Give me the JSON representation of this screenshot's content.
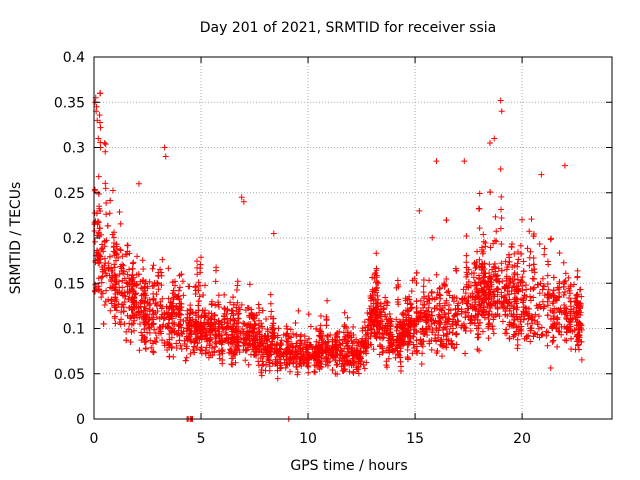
{
  "chart_data": {
    "type": "scatter",
    "title": "Day 201 of 2021, SRMTID for receiver ssia",
    "xlabel": "GPS time / hours",
    "ylabel": "SRMTID / TECUs",
    "xlim": [
      0,
      24.2
    ],
    "ylim": [
      0,
      0.4
    ],
    "xticks": [
      0,
      5,
      10,
      15,
      20
    ],
    "xtick_labels": [
      "0",
      "5",
      "10",
      "15",
      "20"
    ],
    "yticks": [
      0,
      0.05,
      0.1,
      0.15,
      0.2,
      0.25,
      0.3,
      0.35,
      0.4
    ],
    "ytick_labels": [
      "0",
      "0.05",
      "0.1",
      "0.15",
      "0.2",
      "0.25",
      "0.3",
      "0.35",
      "0.4"
    ],
    "grid": true,
    "marker": "plus",
    "color": "#ff0000",
    "series": [
      {
        "name": "SRMTID",
        "profile": {
          "x": [
            0,
            0.5,
            1,
            2,
            3,
            4,
            5,
            6,
            7,
            8,
            9,
            10,
            11,
            12,
            12.6,
            13,
            14,
            15,
            16,
            17,
            18,
            19,
            20,
            21,
            22,
            22.8
          ],
          "median": [
            0.2,
            0.17,
            0.15,
            0.12,
            0.11,
            0.1,
            0.1,
            0.09,
            0.085,
            0.08,
            0.075,
            0.07,
            0.07,
            0.07,
            0.07,
            0.11,
            0.085,
            0.1,
            0.11,
            0.11,
            0.13,
            0.14,
            0.12,
            0.12,
            0.11,
            0.1
          ],
          "spread": [
            0.08,
            0.07,
            0.06,
            0.05,
            0.05,
            0.04,
            0.035,
            0.035,
            0.035,
            0.03,
            0.03,
            0.025,
            0.025,
            0.025,
            0.025,
            0.04,
            0.03,
            0.04,
            0.05,
            0.05,
            0.06,
            0.06,
            0.06,
            0.06,
            0.05,
            0.04
          ]
        },
        "points_per_hour": 95,
        "extra_points": [
          [
            0.05,
            0.35
          ],
          [
            0.08,
            0.355
          ],
          [
            0.1,
            0.34
          ],
          [
            0.12,
            0.345
          ],
          [
            0.15,
            0.33
          ],
          [
            0.2,
            0.31
          ],
          [
            0.3,
            0.3
          ],
          [
            0.5,
            0.305
          ],
          [
            3.3,
            0.3
          ],
          [
            3.35,
            0.29
          ],
          [
            19.0,
            0.352
          ],
          [
            19.05,
            0.34
          ],
          [
            18.5,
            0.305
          ],
          [
            18.7,
            0.31
          ],
          [
            16.0,
            0.285
          ],
          [
            17.3,
            0.285
          ],
          [
            22.0,
            0.28
          ],
          [
            20.9,
            0.27
          ],
          [
            2.1,
            0.26
          ],
          [
            6.9,
            0.245
          ],
          [
            8.4,
            0.205
          ],
          [
            7.0,
            0.24
          ],
          [
            15.2,
            0.23
          ],
          [
            4.4,
            0
          ],
          [
            4.5,
            0
          ],
          [
            4.6,
            0
          ],
          [
            4.35,
            0
          ],
          [
            4.55,
            0
          ],
          [
            9.1,
            0
          ]
        ]
      }
    ]
  }
}
